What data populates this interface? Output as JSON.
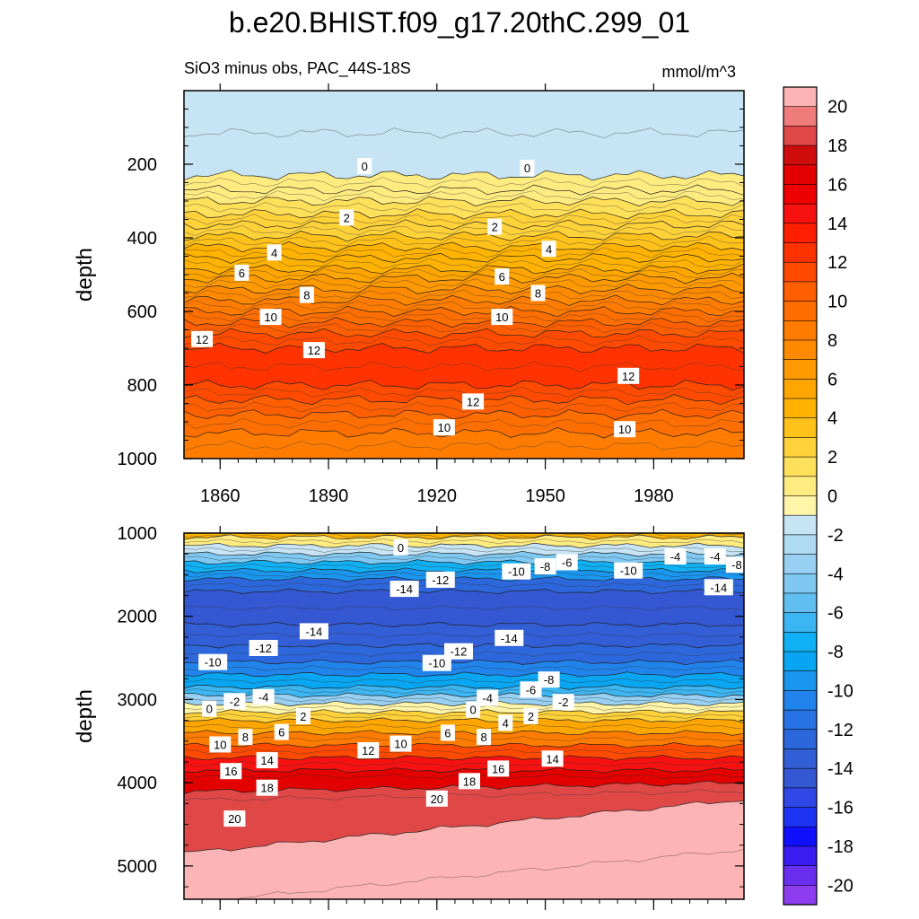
{
  "chart_data": {
    "type": "heatmap",
    "title": "b.e20.BHIST.f09_g17.20thC.299_01",
    "subtitle_left": "SiO3 minus obs, PAC_44S-18S",
    "subtitle_right": "mmol/m^3",
    "x_ticks": [
      "1860",
      "1890",
      "1920",
      "1950",
      "1980"
    ],
    "x_tick_values": [
      1860,
      1890,
      1920,
      1950,
      1980
    ],
    "xlim": [
      1850,
      2005
    ],
    "panels": [
      {
        "name": "upper",
        "ylabel": "depth",
        "ylim": [
          0,
          1000
        ],
        "y_ticks": [
          "200",
          "400",
          "600",
          "800",
          "1000"
        ],
        "y_tick_values": [
          200,
          400,
          600,
          800,
          1000
        ],
        "zones": [
          {
            "from": 0,
            "to": 230,
            "value": -1
          },
          {
            "from": 230,
            "to": 270,
            "value": 0.5
          },
          {
            "from": 270,
            "to": 300,
            "value": 1
          },
          {
            "from": 300,
            "to": 335,
            "value": 1.5
          },
          {
            "from": 335,
            "to": 365,
            "value": 2.5
          },
          {
            "from": 365,
            "to": 395,
            "value": 3
          },
          {
            "from": 395,
            "to": 425,
            "value": 3.5
          },
          {
            "from": 425,
            "to": 455,
            "value": 4.5
          },
          {
            "from": 455,
            "to": 485,
            "value": 5
          },
          {
            "from": 485,
            "to": 510,
            "value": 5.5
          },
          {
            "from": 510,
            "to": 540,
            "value": 6.5
          },
          {
            "from": 540,
            "to": 570,
            "value": 7.5
          },
          {
            "from": 570,
            "to": 600,
            "value": 8.5
          },
          {
            "from": 600,
            "to": 630,
            "value": 9.5
          },
          {
            "from": 630,
            "to": 660,
            "value": 10.5
          },
          {
            "from": 660,
            "to": 700,
            "value": 11.5
          },
          {
            "from": 700,
            "to": 800,
            "value": 12.5
          },
          {
            "from": 800,
            "to": 840,
            "value": 11.5
          },
          {
            "from": 840,
            "to": 880,
            "value": 10.5
          },
          {
            "from": 880,
            "to": 930,
            "value": 9.5
          },
          {
            "from": 930,
            "to": 1000,
            "value": 8.5
          }
        ],
        "contour_labels": [
          {
            "text": "0",
            "x": 1900,
            "y": 205
          },
          {
            "text": "0",
            "x": 1945,
            "y": 210
          },
          {
            "text": "2",
            "x": 1895,
            "y": 345
          },
          {
            "text": "2",
            "x": 1936,
            "y": 370
          },
          {
            "text": "4",
            "x": 1875,
            "y": 440
          },
          {
            "text": "4",
            "x": 1951,
            "y": 430
          },
          {
            "text": "6",
            "x": 1866,
            "y": 495
          },
          {
            "text": "6",
            "x": 1938,
            "y": 505
          },
          {
            "text": "8",
            "x": 1884,
            "y": 555
          },
          {
            "text": "8",
            "x": 1948,
            "y": 550
          },
          {
            "text": "10",
            "x": 1874,
            "y": 615
          },
          {
            "text": "10",
            "x": 1938,
            "y": 615
          },
          {
            "text": "12",
            "x": 1855,
            "y": 675
          },
          {
            "text": "12",
            "x": 1886,
            "y": 705
          },
          {
            "text": "12",
            "x": 1973,
            "y": 775
          },
          {
            "text": "12",
            "x": 1930,
            "y": 845
          },
          {
            "text": "10",
            "x": 1922,
            "y": 915
          },
          {
            "text": "10",
            "x": 1972,
            "y": 920
          }
        ]
      },
      {
        "name": "lower",
        "ylabel": "depth",
        "ylim": [
          1000,
          5400
        ],
        "y_ticks": [
          "1000",
          "2000",
          "3000",
          "4000",
          "5000"
        ],
        "y_tick_values": [
          1000,
          2000,
          3000,
          4000,
          5000
        ],
        "zones": [
          {
            "from": 1000,
            "to": 1050,
            "value": 5
          },
          {
            "from": 1050,
            "to": 1150,
            "value": 1
          },
          {
            "from": 1150,
            "to": 1250,
            "value": -1.5
          },
          {
            "from": 1250,
            "to": 1350,
            "value": -4
          },
          {
            "from": 1350,
            "to": 1450,
            "value": -7
          },
          {
            "from": 1450,
            "to": 1550,
            "value": -9.5
          },
          {
            "from": 1550,
            "to": 1700,
            "value": -12.5
          },
          {
            "from": 1700,
            "to": 2100,
            "value": -14.5
          },
          {
            "from": 2100,
            "to": 2350,
            "value": -13.5
          },
          {
            "from": 2350,
            "to": 2550,
            "value": -12.5
          },
          {
            "from": 2550,
            "to": 2700,
            "value": -10.5
          },
          {
            "from": 2700,
            "to": 2850,
            "value": -8.5
          },
          {
            "from": 2850,
            "to": 2950,
            "value": -6
          },
          {
            "from": 2950,
            "to": 3050,
            "value": -3
          },
          {
            "from": 3050,
            "to": 3150,
            "value": -0.5
          },
          {
            "from": 3150,
            "to": 3250,
            "value": 2.5
          },
          {
            "from": 3250,
            "to": 3400,
            "value": 5.5
          },
          {
            "from": 3400,
            "to": 3550,
            "value": 8.5
          },
          {
            "from": 3550,
            "to": 3700,
            "value": 11.5
          },
          {
            "from": 3700,
            "to": 3850,
            "value": 14.5
          },
          {
            "from": 3850,
            "to": 4000,
            "value": 17
          },
          {
            "from": 4000,
            "to": 4200,
            "value": 19
          },
          {
            "from": 4200,
            "to": 5400,
            "value": 21
          }
        ],
        "contour_labels": [
          {
            "text": "0",
            "x": 1910,
            "y": 1170
          },
          {
            "text": "-12",
            "x": 1921,
            "y": 1560
          },
          {
            "text": "-10",
            "x": 1942,
            "y": 1460
          },
          {
            "text": "-8",
            "x": 1950,
            "y": 1400
          },
          {
            "text": "-6",
            "x": 1956,
            "y": 1350
          },
          {
            "text": "-10",
            "x": 1973,
            "y": 1450
          },
          {
            "text": "-4",
            "x": 1986,
            "y": 1280
          },
          {
            "text": "-4",
            "x": 1997,
            "y": 1280
          },
          {
            "text": "-8",
            "x": 2003,
            "y": 1380
          },
          {
            "text": "-14",
            "x": 1911,
            "y": 1670
          },
          {
            "text": "-14",
            "x": 1998,
            "y": 1650
          },
          {
            "text": "-14",
            "x": 1886,
            "y": 2180
          },
          {
            "text": "-14",
            "x": 1940,
            "y": 2260
          },
          {
            "text": "-12",
            "x": 1872,
            "y": 2380
          },
          {
            "text": "-12",
            "x": 1926,
            "y": 2420
          },
          {
            "text": "-10",
            "x": 1858,
            "y": 2550
          },
          {
            "text": "-10",
            "x": 1920,
            "y": 2560
          },
          {
            "text": "-8",
            "x": 1951,
            "y": 2760
          },
          {
            "text": "-6",
            "x": 1946,
            "y": 2880
          },
          {
            "text": "-4",
            "x": 1934,
            "y": 2980
          },
          {
            "text": "-4",
            "x": 1872,
            "y": 2970
          },
          {
            "text": "-2",
            "x": 1864,
            "y": 3020
          },
          {
            "text": "-2",
            "x": 1955,
            "y": 3030
          },
          {
            "text": "0",
            "x": 1857,
            "y": 3110
          },
          {
            "text": "0",
            "x": 1930,
            "y": 3120
          },
          {
            "text": "2",
            "x": 1883,
            "y": 3200
          },
          {
            "text": "2",
            "x": 1946,
            "y": 3200
          },
          {
            "text": "4",
            "x": 1939,
            "y": 3280
          },
          {
            "text": "6",
            "x": 1877,
            "y": 3390
          },
          {
            "text": "6",
            "x": 1923,
            "y": 3400
          },
          {
            "text": "8",
            "x": 1867,
            "y": 3450
          },
          {
            "text": "8",
            "x": 1933,
            "y": 3450
          },
          {
            "text": "10",
            "x": 1860,
            "y": 3540
          },
          {
            "text": "10",
            "x": 1910,
            "y": 3530
          },
          {
            "text": "12",
            "x": 1901,
            "y": 3610
          },
          {
            "text": "14",
            "x": 1873,
            "y": 3730
          },
          {
            "text": "14",
            "x": 1952,
            "y": 3710
          },
          {
            "text": "16",
            "x": 1863,
            "y": 3860
          },
          {
            "text": "16",
            "x": 1937,
            "y": 3830
          },
          {
            "text": "18",
            "x": 1873,
            "y": 4060
          },
          {
            "text": "18",
            "x": 1929,
            "y": 3980
          },
          {
            "text": "20",
            "x": 1864,
            "y": 4430
          },
          {
            "text": "20",
            "x": 1920,
            "y": 4190
          }
        ]
      }
    ],
    "colorbar": {
      "levels": [
        20,
        18,
        16,
        14,
        12,
        10,
        8,
        6,
        4,
        2,
        0,
        -2,
        -4,
        -6,
        -8,
        -10,
        -12,
        -14,
        -16,
        -18,
        -20
      ],
      "labels": [
        "20",
        "18",
        "16",
        "14",
        "12",
        "10",
        "8",
        "6",
        "4",
        "2",
        "0",
        "-2",
        "-4",
        "-6",
        "-8",
        "-10",
        "-12",
        "-14",
        "-16",
        "-18",
        "-20"
      ],
      "colors": [
        "#fdb4b4",
        "#f07b7b",
        "#e04848",
        "#d00d0d",
        "#e20000",
        "#ee0000",
        "#f71111",
        "#ff1f00",
        "#ff3300",
        "#ff4a00",
        "#ff5f00",
        "#ff6e00",
        "#ff7c00",
        "#ff8a00",
        "#ff9900",
        "#ffa500",
        "#ffb300",
        "#ffc21a",
        "#ffd23a",
        "#ffe05a",
        "#ffec80",
        "#fff5a8",
        "#c6e4f4",
        "#aedaf2",
        "#97d0f2",
        "#7fc8f2",
        "#60bff0",
        "#3bb6f2",
        "#10b0f4",
        "#08a6f2",
        "#1a96f0",
        "#2184ec",
        "#2773e6",
        "#2d67dc",
        "#325ed6",
        "#3457d2",
        "#2e47e6",
        "#1e34f4",
        "#1010ff",
        "#3a1cf2",
        "#6a2ef0",
        "#8e3cf0"
      ]
    }
  }
}
